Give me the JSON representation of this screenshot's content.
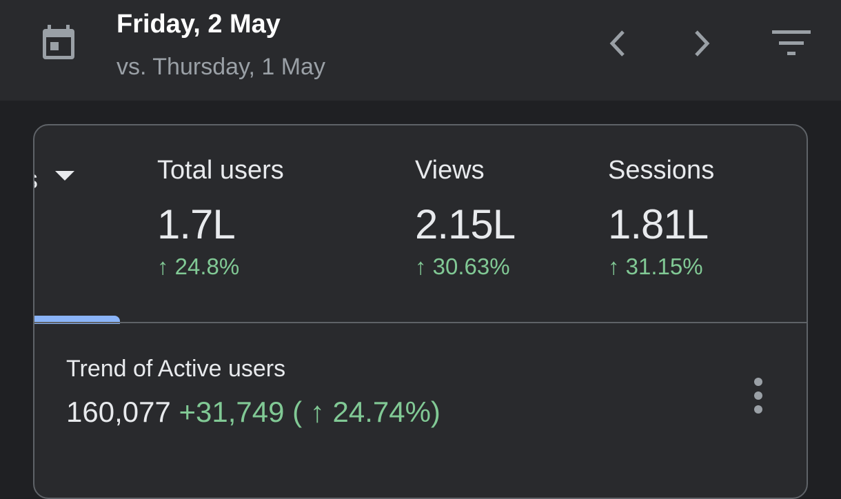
{
  "header": {
    "date": "Friday, 2 May",
    "compare": "vs. Thursday, 1 May",
    "icons": {
      "calendar": "calendar-icon",
      "prev": "chevron-left-icon",
      "next": "chevron-right-icon",
      "filter": "filter-icon"
    }
  },
  "metrics": {
    "dropdown_partial": "s",
    "items": [
      {
        "label": "Total users",
        "value": "1.7L",
        "change": "↑ 24.8%"
      },
      {
        "label": "Views",
        "value": "2.15L",
        "change": "↑ 30.63%"
      },
      {
        "label": "Sessions",
        "value": "1.81L",
        "change": "↑ 31.15%"
      }
    ]
  },
  "trend": {
    "title": "Trend of Active users",
    "value": "160,077",
    "delta": "+31,749 ( ↑ 24.74%)"
  },
  "colors": {
    "background": "#1f2023",
    "surface": "#292a2d",
    "positive": "#81c995",
    "accent": "#8ab4f8",
    "muted_text": "#9aa0a6",
    "border": "#5f6368"
  }
}
